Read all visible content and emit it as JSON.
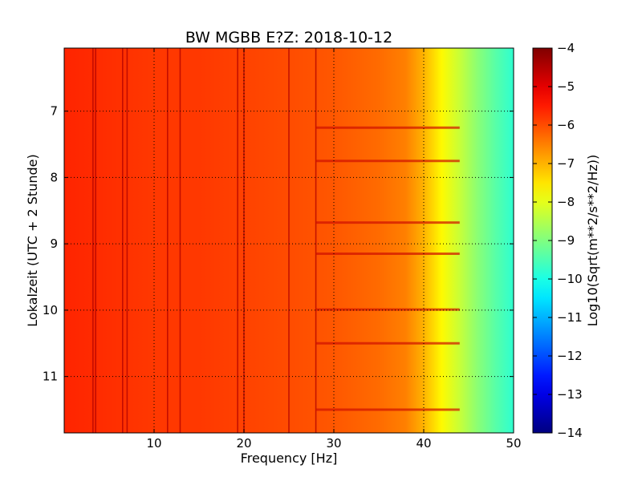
{
  "chart_data": {
    "type": "heatmap",
    "title": "BW MGBB E?Z: 2018-10-12",
    "xlabel": "Frequency [Hz]",
    "ylabel": "Lokalzeit (UTC + 2 Stunde)",
    "xlim": [
      0,
      50
    ],
    "ylim": [
      11.85,
      6.05
    ],
    "x_ticks": [
      10,
      20,
      30,
      40,
      50
    ],
    "y_ticks": [
      7,
      8,
      9,
      10,
      11
    ],
    "grid": true,
    "colorbar": {
      "label": "Log10(Sqrt(m**2/s**2/Hz))",
      "min": -14,
      "max": -4,
      "ticks": [
        -4,
        -5,
        -6,
        -7,
        -8,
        -9,
        -10,
        -11,
        -12,
        -13,
        -14
      ],
      "colormap": "jet"
    },
    "spectrum_profile": {
      "frequency_hz": [
        0,
        5,
        10,
        15,
        20,
        25,
        30,
        35,
        38,
        40,
        42,
        44,
        46,
        48,
        50
      ],
      "log_amplitude": [
        -5.6,
        -5.7,
        -5.8,
        -5.8,
        -5.9,
        -6.0,
        -6.1,
        -6.3,
        -6.5,
        -7.0,
        -7.7,
        -8.3,
        -8.9,
        -9.4,
        -9.8
      ]
    },
    "vertical_lines_hz": [
      3.2,
      3.5,
      6.5,
      7.0,
      11.5,
      12.9,
      19.3,
      20.0,
      25.0,
      28.0
    ],
    "horizontal_bands_hour": [
      7.25,
      7.75,
      8.68,
      9.15,
      9.99,
      10.5,
      11.5
    ]
  }
}
